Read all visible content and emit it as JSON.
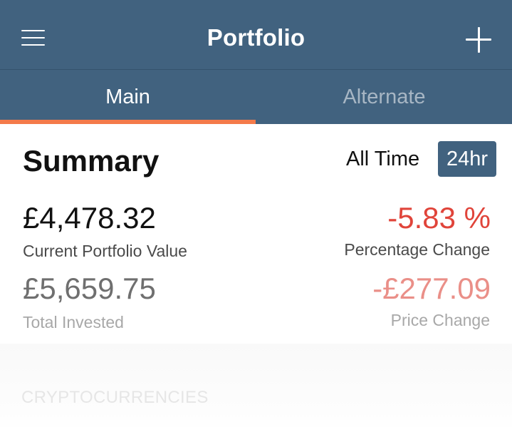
{
  "header": {
    "title": "Portfolio"
  },
  "tabs": [
    {
      "label": "Main",
      "active": true
    },
    {
      "label": "Alternate",
      "active": false
    }
  ],
  "summary": {
    "title": "Summary",
    "ranges": [
      {
        "label": "All Time",
        "active": false
      },
      {
        "label": "24hr",
        "active": true
      }
    ],
    "current_value": "£4,478.32",
    "current_value_label": "Current Portfolio Value",
    "percentage_change": "-5.83 %",
    "percentage_change_label": "Percentage Change",
    "total_invested": "£5,659.75",
    "total_invested_label": "Total Invested",
    "price_change": "-£277.09",
    "price_change_label": "Price Change"
  },
  "section": {
    "heading": "CRYPTOCURRENCIES"
  },
  "colors": {
    "primary": "#41627f",
    "accent": "#f47a4a",
    "negative": "#e0443a",
    "negative_light": "#ea8f88"
  },
  "icons": {
    "menu": "hamburger-menu-icon",
    "add": "plus-icon"
  }
}
